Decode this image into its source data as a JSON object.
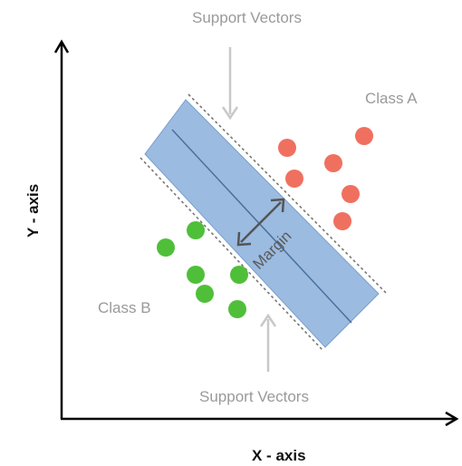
{
  "labels": {
    "support_vectors_top": "Support Vectors",
    "support_vectors_bottom": "Support Vectors",
    "class_a": "Class A",
    "class_b": "Class B",
    "margin": "Margin",
    "x_axis": "X - axis",
    "y_axis": "Y - axis"
  },
  "colors": {
    "class_a": "#f07060",
    "class_b": "#4fbf3a",
    "margin_band": "#9bbbe0",
    "margin_band_border": "#5f86b8",
    "axis": "#000000",
    "arrow_gray": "#c8c8c8",
    "label_gray": "#9a9a9a",
    "margin_arrow": "#555555"
  }
}
